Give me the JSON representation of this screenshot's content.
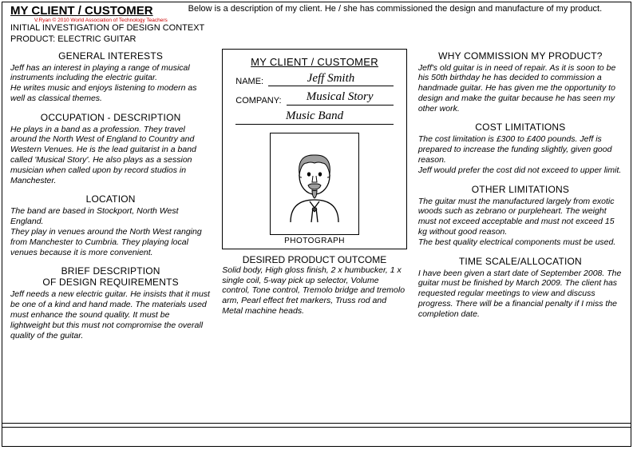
{
  "header": {
    "title": "MY CLIENT / CUSTOMER",
    "copyright": "V.Ryan © 2010 World Association of Technology Teachers",
    "subtitle": "Below is a description of my client. He / she has commissioned the design and manufacture of my product."
  },
  "context": {
    "line1": "INITIAL INVESTIGATION OF DESIGN CONTEXT",
    "line2": "PRODUCT: ELECTRIC GUITAR"
  },
  "left": {
    "interests_title": "GENERAL INTERESTS",
    "interests_body": "Jeff has an interest in playing a range of musical instruments including the electric guitar.\nHe writes music and enjoys listening to modern as well as classical themes.",
    "occupation_title": "OCCUPATION - DESCRIPTION",
    "occupation_body": "He plays in a band as a profession. They travel around the North West of England to Country and Western Venues. He is the lead guitarist in a band called 'Musical Story'. He also plays as a session musician when called upon by record studios in Manchester.",
    "location_title": "LOCATION",
    "location_body": "The band are based in Stockport, North West England.\nThey play in venues around the North West ranging from Manchester to Cumbria. They playing local venues because it is more convenient.",
    "brief_title1": "BRIEF DESCRIPTION",
    "brief_title2": "OF DESIGN REQUIREMENTS",
    "brief_body": "Jeff needs a new electric guitar. He insists that it must be one of a kind and hand made. The materials used must enhance the sound quality. It must be lightweight but this must not compromise the overall quality of the guitar."
  },
  "mid": {
    "card_title": "MY CLIENT / CUSTOMER",
    "name_label": "NAME:",
    "name_value": "Jeff Smith",
    "company_label": "COMPANY:",
    "company_value": "Musical Story",
    "company_value2": "Music Band",
    "photo_caption": "PHOTOGRAPH",
    "outcome_title": "DESIRED PRODUCT OUTCOME",
    "outcome_body": "Solid body, High gloss finish, 2 x humbucker, 1 x single coil, 5-way pick up selector, Volume control, Tone control, Tremolo bridge and tremolo arm, Pearl effect fret markers, Truss rod and Metal machine heads."
  },
  "right": {
    "why_title": "WHY COMMISSION MY PRODUCT?",
    "why_body": "Jeff's old guitar is in need of repair. As it is soon to be his 50th birthday he has decided to commission a handmade guitar. He has given me the opportunity to design and make the guitar because he has seen my other work.",
    "cost_title": "COST LIMITATIONS",
    "cost_body": "The cost limitation is £300 to £400 pounds. Jeff is prepared to increase the funding slightly, given good reason.\nJeff would prefer the cost did not exceed to upper limit.",
    "other_title": "OTHER LIMITATIONS",
    "other_body": "The guitar must the manufactured largely from exotic woods such as zebrano or purpleheart. The weight must not exceed acceptable and must not exceed 15 kg without good reason.\nThe best quality electrical components must be used.",
    "time_title": "TIME SCALE/ALLOCATION",
    "time_body": "I have been given a start date of September 2008. The guitar must be finished by March 2009. The client has requested regular meetings to view and discuss progress. There will be a financial penalty if I miss the completion date."
  },
  "colors": {
    "border": "#000000",
    "copyright": "#c00000",
    "text": "#000000",
    "portrait_skin": "#ffffff",
    "portrait_hair": "#9e9e9e"
  }
}
